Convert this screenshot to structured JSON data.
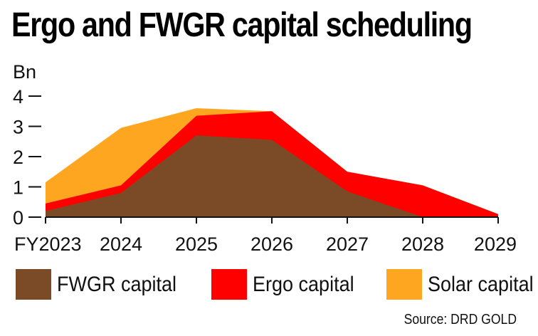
{
  "title": "Ergo and FWGR capital scheduling",
  "source": "Source: DRD GOLD",
  "colors": {
    "fwgr": "#7B4B28",
    "ergo": "#FF0000",
    "solar": "#FFA621",
    "axis": "#111111"
  },
  "chart_data": {
    "type": "area",
    "stacked": true,
    "title": "Ergo and FWGR capital scheduling",
    "ylabel": "Bn",
    "xlabel": "",
    "x": [
      "FY2023",
      "2024",
      "2025",
      "2026",
      "2027",
      "2028",
      "2029"
    ],
    "ylim": [
      0,
      4
    ],
    "yticks": [
      0,
      1,
      2,
      3,
      4
    ],
    "grid": false,
    "legend_position": "bottom",
    "series": [
      {
        "name": "FWGR capital",
        "color": "#7B4B28",
        "values": [
          0.2,
          0.8,
          2.7,
          2.55,
          0.85,
          0.0,
          0.0
        ]
      },
      {
        "name": "Ergo capital",
        "color": "#FF0000",
        "values": [
          0.25,
          0.25,
          0.65,
          0.95,
          0.65,
          1.05,
          0.1
        ]
      },
      {
        "name": "Solar capital",
        "color": "#FFA621",
        "values": [
          0.7,
          1.9,
          0.25,
          0.0,
          0.0,
          0.0,
          0.0
        ]
      }
    ]
  }
}
